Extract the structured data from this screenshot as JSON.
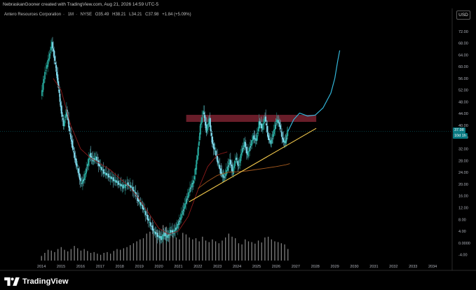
{
  "header": {
    "attribution": "NebraskanGooner created with TradingView.com, Aug 21, 2026 14:59 UTC-5",
    "symbol_line": {
      "name": "Antero Resources Corporation",
      "interval": "1M",
      "exchange": "NYSE",
      "open": "O35.49",
      "high": "H38.21",
      "low": "L34.21",
      "close": "C37.98",
      "change": "+1.84 (+5.09%)"
    }
  },
  "currency_label": "USD",
  "price_tag": {
    "value": "37.98",
    "countdown": "10d 1h"
  },
  "brand": {
    "name": "TradingView"
  },
  "colors": {
    "background": "#000000",
    "up_candle": "#26a69a",
    "down_candle": "#7fd7ea",
    "ma_red": "#8b1a1a",
    "ma_orange": "#a65a1e",
    "trendline": "#f2c94c",
    "resistance_zone": "#7a2230",
    "projection": "#33b6d9",
    "volume": "#a8a8a8",
    "price_tag": "#0a7a82"
  },
  "chart_data": {
    "type": "candlestick",
    "title": "",
    "ylim": [
      -6,
      76
    ],
    "xlim": [
      2013.6,
      2035.0
    ],
    "y_ticks": [
      "72.00",
      "68.00",
      "64.00",
      "60.00",
      "56.00",
      "52.00",
      "48.00",
      "44.00",
      "40.00",
      "36.00",
      "32.00",
      "28.00",
      "24.00",
      "20.00",
      "16.00",
      "12.00",
      "8.00",
      "4.00",
      "0.0000",
      "-4.00"
    ],
    "y_tick_values": [
      72,
      68,
      64,
      60,
      56,
      52,
      48,
      44,
      40,
      36,
      32,
      28,
      24,
      20,
      16,
      12,
      8,
      4,
      0,
      -4
    ],
    "x_ticks": [
      "2014",
      "2015",
      "2016",
      "2017",
      "2018",
      "2019",
      "2020",
      "2021",
      "2022",
      "2023",
      "2024",
      "2025",
      "2026",
      "2027",
      "2028",
      "2029",
      "2030",
      "2031",
      "2032",
      "2033",
      "2034"
    ],
    "x_tick_values": [
      2014,
      2015,
      2016,
      2017,
      2018,
      2019,
      2020,
      2021,
      2022,
      2023,
      2024,
      2025,
      2026,
      2027,
      2028,
      2029,
      2030,
      2031,
      2032,
      2033,
      2034
    ],
    "price_path": [
      [
        2014.0,
        50
      ],
      [
        2014.2,
        58
      ],
      [
        2014.4,
        63
      ],
      [
        2014.55,
        68
      ],
      [
        2014.7,
        62
      ],
      [
        2014.85,
        55
      ],
      [
        2015.0,
        46
      ],
      [
        2015.15,
        40
      ],
      [
        2015.3,
        45
      ],
      [
        2015.45,
        38
      ],
      [
        2015.6,
        33
      ],
      [
        2015.75,
        28
      ],
      [
        2015.9,
        24
      ],
      [
        2016.05,
        20
      ],
      [
        2016.2,
        22
      ],
      [
        2016.35,
        26
      ],
      [
        2016.5,
        30
      ],
      [
        2016.65,
        28
      ],
      [
        2016.8,
        29
      ],
      [
        2017.0,
        26
      ],
      [
        2017.2,
        24
      ],
      [
        2017.4,
        23
      ],
      [
        2017.6,
        22
      ],
      [
        2017.8,
        21
      ],
      [
        2018.0,
        20
      ],
      [
        2018.2,
        19
      ],
      [
        2018.4,
        20
      ],
      [
        2018.6,
        19
      ],
      [
        2018.8,
        17
      ],
      [
        2019.0,
        14
      ],
      [
        2019.2,
        12
      ],
      [
        2019.4,
        9
      ],
      [
        2019.6,
        6
      ],
      [
        2019.8,
        3.5
      ],
      [
        2020.0,
        2.2
      ],
      [
        2020.15,
        1.5
      ],
      [
        2020.3,
        3
      ],
      [
        2020.45,
        2
      ],
      [
        2020.6,
        4
      ],
      [
        2020.75,
        3.5
      ],
      [
        2020.9,
        5
      ],
      [
        2021.05,
        7
      ],
      [
        2021.2,
        10
      ],
      [
        2021.35,
        13
      ],
      [
        2021.5,
        16
      ],
      [
        2021.65,
        19
      ],
      [
        2021.8,
        21
      ],
      [
        2022.0,
        30
      ],
      [
        2022.15,
        40
      ],
      [
        2022.3,
        45
      ],
      [
        2022.45,
        38
      ],
      [
        2022.6,
        42
      ],
      [
        2022.75,
        34
      ],
      [
        2022.9,
        31
      ],
      [
        2023.05,
        27
      ],
      [
        2023.2,
        24
      ],
      [
        2023.35,
        22
      ],
      [
        2023.5,
        25
      ],
      [
        2023.65,
        28
      ],
      [
        2023.8,
        24
      ],
      [
        2023.95,
        29
      ],
      [
        2024.1,
        26
      ],
      [
        2024.25,
        31
      ],
      [
        2024.4,
        34
      ],
      [
        2024.55,
        30
      ],
      [
        2024.7,
        33
      ],
      [
        2024.85,
        36
      ],
      [
        2025.0,
        35
      ],
      [
        2025.15,
        41
      ],
      [
        2025.3,
        39
      ],
      [
        2025.45,
        43
      ],
      [
        2025.6,
        36
      ],
      [
        2025.75,
        34
      ],
      [
        2025.9,
        38
      ],
      [
        2026.05,
        42
      ],
      [
        2026.2,
        40
      ],
      [
        2026.35,
        35
      ],
      [
        2026.5,
        34.2
      ],
      [
        2026.6,
        37.98
      ]
    ],
    "series": [
      {
        "name": "",
        "type": "moving_average_red",
        "points": [
          [
            2014.6,
            56
          ],
          [
            2015.0,
            52
          ],
          [
            2015.5,
            40
          ],
          [
            2016.0,
            32
          ],
          [
            2016.5,
            29
          ],
          [
            2017.0,
            27
          ],
          [
            2017.5,
            25
          ],
          [
            2018.0,
            22
          ],
          [
            2018.5,
            19
          ],
          [
            2019.0,
            15
          ],
          [
            2019.5,
            10
          ],
          [
            2020.0,
            5
          ],
          [
            2020.5,
            3
          ],
          [
            2021.0,
            4
          ],
          [
            2021.5,
            9
          ],
          [
            2022.0,
            18
          ],
          [
            2022.5,
            26
          ],
          [
            2023.0,
            30
          ],
          [
            2023.5,
            31
          ]
        ]
      },
      {
        "name": "",
        "type": "moving_average_orange",
        "points": [
          [
            2022.0,
            18.5
          ],
          [
            2022.5,
            21
          ],
          [
            2023.0,
            23
          ],
          [
            2023.5,
            24
          ],
          [
            2024.0,
            24.2
          ],
          [
            2024.5,
            24.5
          ],
          [
            2025.0,
            25
          ],
          [
            2025.5,
            25.5
          ],
          [
            2026.0,
            26
          ],
          [
            2026.5,
            26.6
          ],
          [
            2026.7,
            27
          ]
        ]
      },
      {
        "name": "",
        "type": "trendline",
        "points": [
          [
            2021.55,
            14
          ],
          [
            2028.05,
            39
          ]
        ]
      },
      {
        "name": "",
        "type": "projection",
        "points": [
          [
            2026.6,
            37.98
          ],
          [
            2026.9,
            42
          ],
          [
            2027.2,
            44.2
          ],
          [
            2027.6,
            43.2
          ],
          [
            2028.0,
            43.5
          ],
          [
            2028.4,
            46
          ],
          [
            2028.8,
            51
          ],
          [
            2029.0,
            56
          ],
          [
            2029.15,
            62
          ],
          [
            2029.25,
            65.5
          ]
        ]
      }
    ],
    "resistance_zone": {
      "x_range": [
        2021.4,
        2028.05
      ],
      "y_range": [
        41.2,
        43.6
      ]
    },
    "volume_bars_relative": [
      0.12,
      0.2,
      0.28,
      0.26,
      0.22,
      0.3,
      0.35,
      0.28,
      0.24,
      0.3,
      0.38,
      0.32,
      0.26,
      0.3,
      0.25,
      0.2,
      0.22,
      0.18,
      0.15,
      0.2,
      0.22,
      0.18,
      0.25,
      0.3,
      0.28,
      0.32,
      0.35,
      0.4,
      0.45,
      0.5,
      0.55,
      0.58,
      0.7,
      0.75,
      0.85,
      0.8,
      0.78,
      0.92,
      0.88,
      0.7,
      0.65,
      0.6,
      0.55,
      0.72,
      0.68,
      0.6,
      0.55,
      0.58,
      0.5,
      0.62,
      0.52,
      0.48,
      0.55,
      0.5,
      0.45,
      0.52,
      0.6,
      0.7,
      0.62,
      0.58,
      0.45,
      0.42,
      0.55,
      0.5,
      0.48,
      0.44,
      0.52,
      0.47,
      0.6,
      0.62,
      0.55,
      0.5,
      0.48,
      0.45,
      0.42,
      0.3
    ],
    "last_close": 37.98,
    "grid": false
  }
}
